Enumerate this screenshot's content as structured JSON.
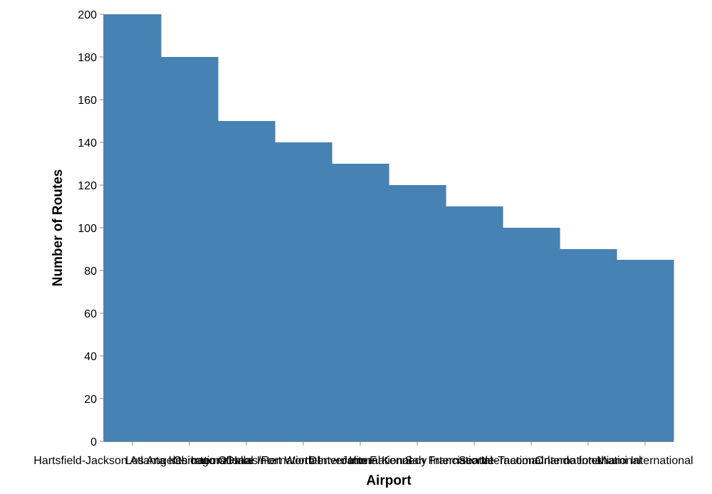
{
  "chart_data": {
    "type": "area",
    "interpolation": "step",
    "categories": [
      "Hartsfield-Jackson Atlanta International",
      "Los Angeles International",
      "Chicago O'Hare International",
      "Dallas/Fort Worth International",
      "Denver International",
      "John F. Kennedy International",
      "San Francisco International",
      "Seattle-Tacoma International",
      "Orlando International",
      "Miami International"
    ],
    "values": [
      200,
      180,
      150,
      140,
      130,
      120,
      110,
      100,
      90,
      85
    ],
    "xlabel": "Airport",
    "ylabel": "Number of Routes",
    "ylim": [
      0,
      200
    ],
    "yticks": [
      0,
      20,
      40,
      60,
      80,
      100,
      120,
      140,
      160,
      180,
      200
    ],
    "grid": false,
    "color": "#4682b4"
  }
}
